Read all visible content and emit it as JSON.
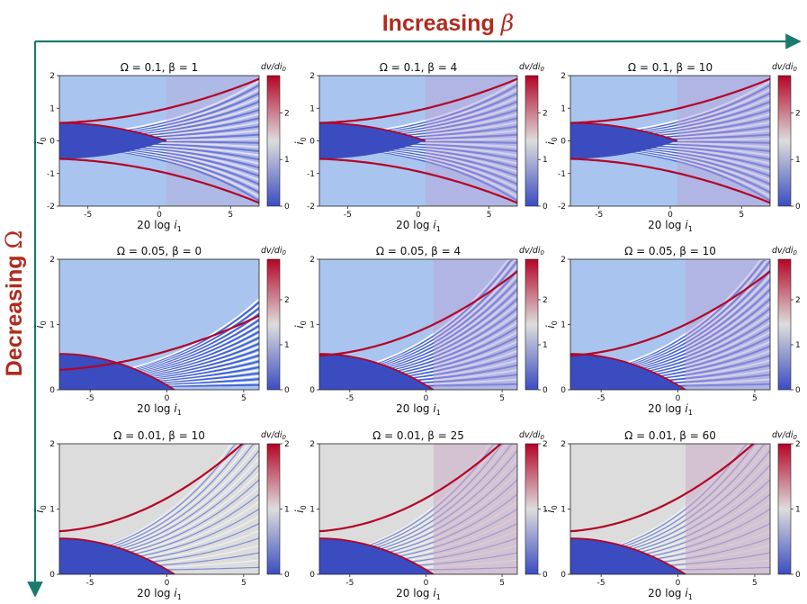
{
  "header": {
    "top_label_text": "Increasing",
    "top_label_symbol": "β",
    "side_label_text": "Decreasing",
    "side_label_symbol": "Ω"
  },
  "colors": {
    "arrow": "#1a7a6e",
    "label": "#b22a1e",
    "cmap_low": "#3a4cc0",
    "cmap_mid": "#dddddd",
    "cmap_high": "#b40426"
  },
  "chart_data": [
    {
      "type": "heatmap",
      "row": 0,
      "col": 0,
      "omega": "0.1",
      "beta": "1",
      "title_omega": "Ω = 0.1",
      "title_beta": "β = 1",
      "xlabel_prefix": "20 log ",
      "xlabel_var": "i",
      "xlabel_sub": "1",
      "ylabel_var": "i",
      "ylabel_sub": "0",
      "xlim": [
        -7,
        7
      ],
      "ylim": [
        -2,
        2
      ],
      "xticks": [
        -5,
        0,
        5
      ],
      "xtick_labels": [
        "-5",
        "0",
        "5"
      ],
      "yticks": [
        -2,
        -1,
        0,
        1,
        2
      ],
      "ytick_labels": [
        "-2",
        "-1",
        "0",
        "1",
        "2"
      ],
      "colorbar": {
        "label_prefix": "dv/di",
        "label_sub": "0",
        "range": [
          0,
          2.8
        ],
        "ticks": [
          0,
          1,
          2
        ],
        "tick_labels": [
          "0",
          "1",
          "2"
        ]
      }
    },
    {
      "type": "heatmap",
      "row": 0,
      "col": 1,
      "omega": "0.1",
      "beta": "4",
      "title_omega": "Ω = 0.1",
      "title_beta": "β = 4",
      "xlabel_prefix": "20 log ",
      "xlabel_var": "i",
      "xlabel_sub": "1",
      "ylabel_var": "i",
      "ylabel_sub": "0",
      "xlim": [
        -7,
        7
      ],
      "ylim": [
        -2,
        2
      ],
      "xticks": [
        -5,
        0,
        5
      ],
      "xtick_labels": [
        "-5",
        "0",
        "5"
      ],
      "yticks": [
        -2,
        -1,
        0,
        1,
        2
      ],
      "ytick_labels": [
        "-2",
        "-1",
        "0",
        "1",
        "2"
      ],
      "colorbar": {
        "label_prefix": "dv/di",
        "label_sub": "0",
        "range": [
          0,
          2.8
        ],
        "ticks": [
          0,
          1,
          2
        ],
        "tick_labels": [
          "0",
          "1",
          "2"
        ]
      }
    },
    {
      "type": "heatmap",
      "row": 0,
      "col": 2,
      "omega": "0.1",
      "beta": "10",
      "title_omega": "Ω = 0.1",
      "title_beta": "β = 10",
      "xlabel_prefix": "20 log ",
      "xlabel_var": "i",
      "xlabel_sub": "1",
      "ylabel_var": "i",
      "ylabel_sub": "0",
      "xlim": [
        -7,
        7
      ],
      "ylim": [
        -2,
        2
      ],
      "xticks": [
        -5,
        0,
        5
      ],
      "xtick_labels": [
        "-5",
        "0",
        "5"
      ],
      "yticks": [
        -2,
        -1,
        0,
        1,
        2
      ],
      "ytick_labels": [
        "-2",
        "-1",
        "0",
        "1",
        "2"
      ],
      "colorbar": {
        "label_prefix": "dv/di",
        "label_sub": "0",
        "range": [
          0,
          2.8
        ],
        "ticks": [
          0,
          1,
          2
        ],
        "tick_labels": [
          "0",
          "1",
          "2"
        ]
      }
    },
    {
      "type": "heatmap",
      "row": 1,
      "col": 0,
      "omega": "0.05",
      "beta": "0",
      "title_omega": "Ω = 0.05",
      "title_beta": "β = 0",
      "xlabel_prefix": "20 log ",
      "xlabel_var": "i",
      "xlabel_sub": "1",
      "ylabel_var": "i",
      "ylabel_sub": "0",
      "xlim": [
        -7,
        6
      ],
      "ylim": [
        0,
        2
      ],
      "xticks": [
        -5,
        0,
        5
      ],
      "xtick_labels": [
        "-5",
        "0",
        "5"
      ],
      "yticks": [
        0,
        1,
        2
      ],
      "ytick_labels": [
        "0",
        "1",
        "2"
      ],
      "colorbar": {
        "label_prefix": "dv/di",
        "label_sub": "0",
        "range": [
          0,
          2.9
        ],
        "ticks": [
          0,
          1,
          2
        ],
        "tick_labels": [
          "0",
          "1",
          "2"
        ]
      }
    },
    {
      "type": "heatmap",
      "row": 1,
      "col": 1,
      "omega": "0.05",
      "beta": "4",
      "title_omega": "Ω = 0.05",
      "title_beta": "β = 4",
      "xlabel_prefix": "20 log ",
      "xlabel_var": "i",
      "xlabel_sub": "1",
      "ylabel_var": "i",
      "ylabel_sub": "0",
      "xlim": [
        -7,
        6
      ],
      "ylim": [
        0,
        2
      ],
      "xticks": [
        -5,
        0,
        5
      ],
      "xtick_labels": [
        "-5",
        "0",
        "5"
      ],
      "yticks": [
        0,
        1,
        2
      ],
      "ytick_labels": [
        "0",
        "1",
        "2"
      ],
      "colorbar": {
        "label_prefix": "dv/di",
        "label_sub": "0",
        "range": [
          0,
          2.9
        ],
        "ticks": [
          0,
          1,
          2
        ],
        "tick_labels": [
          "0",
          "1",
          "2"
        ]
      }
    },
    {
      "type": "heatmap",
      "row": 1,
      "col": 2,
      "omega": "0.05",
      "beta": "10",
      "title_omega": "Ω = 0.05",
      "title_beta": "β = 10",
      "xlabel_prefix": "20 log ",
      "xlabel_var": "i",
      "xlabel_sub": "1",
      "ylabel_var": "i",
      "ylabel_sub": "0",
      "xlim": [
        -7,
        6
      ],
      "ylim": [
        0,
        2
      ],
      "xticks": [
        -5,
        0,
        5
      ],
      "xtick_labels": [
        "-5",
        "0",
        "5"
      ],
      "yticks": [
        0,
        1,
        2
      ],
      "ytick_labels": [
        "0",
        "1",
        "2"
      ],
      "colorbar": {
        "label_prefix": "dv/di",
        "label_sub": "0",
        "range": [
          0,
          2.9
        ],
        "ticks": [
          0,
          1,
          2
        ],
        "tick_labels": [
          "0",
          "1",
          "2"
        ]
      }
    },
    {
      "type": "heatmap",
      "row": 2,
      "col": 0,
      "omega": "0.01",
      "beta": "10",
      "title_omega": "Ω = 0.01",
      "title_beta": "β = 10",
      "xlabel_prefix": "20 log ",
      "xlabel_var": "i",
      "xlabel_sub": "1",
      "ylabel_var": "i",
      "ylabel_sub": "0",
      "xlim": [
        -7,
        6
      ],
      "ylim": [
        0,
        2
      ],
      "xticks": [
        -5,
        0,
        5
      ],
      "xtick_labels": [
        "-5",
        "0",
        "5"
      ],
      "yticks": [
        0,
        1,
        2
      ],
      "ytick_labels": [
        "0",
        "1",
        "2"
      ],
      "colorbar": {
        "label_prefix": "dv/di",
        "label_sub": "0",
        "range": [
          0,
          2
        ],
        "ticks": [
          0,
          1,
          2
        ],
        "tick_labels": [
          "0",
          "1",
          "2"
        ]
      }
    },
    {
      "type": "heatmap",
      "row": 2,
      "col": 1,
      "omega": "0.01",
      "beta": "25",
      "title_omega": "Ω = 0.01",
      "title_beta": "β = 25",
      "xlabel_prefix": "20 log ",
      "xlabel_var": "i",
      "xlabel_sub": "1",
      "ylabel_var": "i",
      "ylabel_sub": "0",
      "xlim": [
        -7,
        6
      ],
      "ylim": [
        0,
        2
      ],
      "xticks": [
        -5,
        0,
        5
      ],
      "xtick_labels": [
        "-5",
        "0",
        "5"
      ],
      "yticks": [
        0,
        1,
        2
      ],
      "ytick_labels": [
        "0",
        "1",
        "2"
      ],
      "colorbar": {
        "label_prefix": "dv/di",
        "label_sub": "0",
        "range": [
          0,
          2
        ],
        "ticks": [
          0,
          1,
          2
        ],
        "tick_labels": [
          "0",
          "1",
          "2"
        ]
      }
    },
    {
      "type": "heatmap",
      "row": 2,
      "col": 2,
      "omega": "0.01",
      "beta": "60",
      "title_omega": "Ω = 0.01",
      "title_beta": "β = 60",
      "xlabel_prefix": "20 log ",
      "xlabel_var": "i",
      "xlabel_sub": "1",
      "ylabel_var": "i",
      "ylabel_sub": "0",
      "xlim": [
        -7,
        6
      ],
      "ylim": [
        0,
        2
      ],
      "xticks": [
        -5,
        0,
        5
      ],
      "xtick_labels": [
        "-5",
        "0",
        "5"
      ],
      "yticks": [
        0,
        1,
        2
      ],
      "ytick_labels": [
        "0",
        "1",
        "2"
      ],
      "colorbar": {
        "label_prefix": "dv/di",
        "label_sub": "0",
        "range": [
          0,
          2
        ],
        "ticks": [
          0,
          1,
          2
        ],
        "tick_labels": [
          "0",
          "1",
          "2"
        ]
      }
    }
  ]
}
